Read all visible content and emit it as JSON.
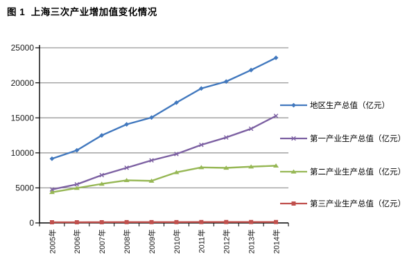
{
  "title": "图 1  上海三次产业增加值变化情况",
  "chart_data": {
    "type": "line",
    "title": "图 1  上海三次产业增加值变化情况",
    "categories": [
      "2005年",
      "2006年",
      "2007年",
      "2008年",
      "2009年",
      "2010年",
      "2011年",
      "2012年",
      "2013年",
      "2014年"
    ],
    "series": [
      {
        "key": "regional-gdp",
        "name": "地区生产总值（亿元）",
        "color": "#4178BE",
        "marker": "diamond",
        "values": [
          9164,
          10366,
          12494,
          14070,
          15046,
          17166,
          19196,
          20182,
          21818,
          23568
        ]
      },
      {
        "key": "primary-industry",
        "name": "第一产业生产总值（亿元）",
        "color": "#7C60A2",
        "marker": "x",
        "values": [
          4776,
          5508,
          6821,
          7871,
          8931,
          9834,
          11143,
          12199,
          13445,
          15276
        ]
      },
      {
        "key": "secondary-industry",
        "name": "第二产业生产总值（亿元）",
        "color": "#96B754",
        "marker": "triangle",
        "values": [
          4381,
          4970,
          5571,
          6086,
          6002,
          7218,
          7928,
          7855,
          8028,
          8165
        ]
      },
      {
        "key": "tertiary-industry",
        "name": "第三产业生产总值（亿元）",
        "color": "#C0504D",
        "marker": "square",
        "values": [
          97,
          94,
          102,
          113,
          114,
          114,
          125,
          128,
          129,
          127
        ]
      }
    ],
    "ylim": [
      0,
      25000
    ],
    "yticks": [
      0,
      5000,
      10000,
      15000,
      20000,
      25000
    ],
    "grid": true,
    "legend_position": "right",
    "axis_color": "#000000",
    "gridline_color": "#989898",
    "tick_label_color": "#1a1a1a",
    "background": "#ffffff"
  }
}
